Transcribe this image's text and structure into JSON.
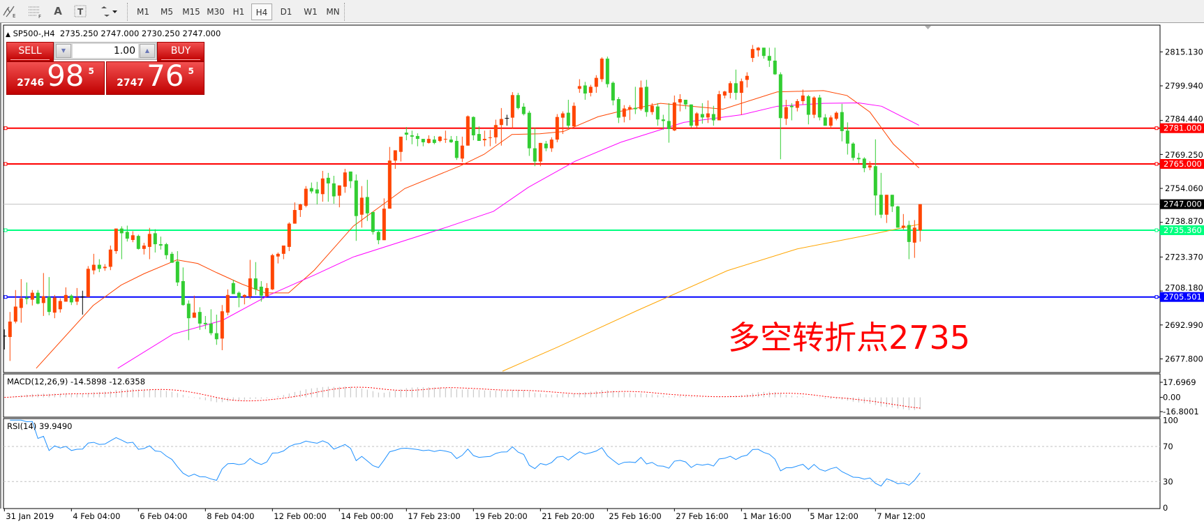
{
  "toolbar": {
    "icons": [
      "elliott-wave-icon",
      "fibonacci-icon",
      "text-icon",
      "text-label-icon",
      "arrows-icon"
    ],
    "timeframes": [
      "M1",
      "M5",
      "M15",
      "M30",
      "H1",
      "H4",
      "D1",
      "W1",
      "MN"
    ],
    "selected_timeframe": "H4"
  },
  "chart_header": {
    "symbol": "SP500-,H4",
    "ohlc": "2735.250 2747.000 2730.250 2747.000"
  },
  "trade_panel": {
    "sell_label": "SELL",
    "buy_label": "BUY",
    "lot": "1.00",
    "sell_price": {
      "prefix": "2746",
      "big": "98",
      "sup": "5"
    },
    "buy_price": {
      "prefix": "2747",
      "big": "76",
      "sup": "5"
    }
  },
  "annotation": "多空转折点2735",
  "macd_label": "MACD(12,26,9) -14.5898 -12.6358",
  "rsi_label": "RSI(14) 39.9490",
  "colors": {
    "bull": "#ff4500",
    "bear": "#32cd32",
    "doji": "#000000"
  },
  "chart_data": {
    "type": "candlestick",
    "candles": [
      [
        2688,
        2691,
        2682,
        2688
      ],
      [
        2687.6,
        2698.8,
        2676.9,
        2694.5
      ],
      [
        2694.5,
        2708.6,
        2693.7,
        2701.2
      ],
      [
        2700.6,
        2713.5,
        2694,
        2704.9
      ],
      [
        2705.2,
        2712,
        2702.2,
        2704.6
      ],
      [
        2704.3,
        2708.6,
        2701.7,
        2707.4
      ],
      [
        2707.4,
        2708.6,
        2702.2,
        2702.5
      ],
      [
        2702.8,
        2716.2,
        2697,
        2705.8
      ],
      [
        2705.5,
        2714.4,
        2697.3,
        2698.8
      ],
      [
        2698.5,
        2706.4,
        2696,
        2705.2
      ],
      [
        2700,
        2704.9,
        2698.5,
        2703.7
      ],
      [
        2703.4,
        2709.8,
        2703.4,
        2706.4
      ],
      [
        2706.1,
        2706.7,
        2701.9,
        2703.1
      ],
      [
        2703.4,
        2709.5,
        2701.9,
        2705.2
      ],
      [
        2705.5,
        2708.3,
        2697.6,
        2705.5
      ],
      [
        2705.5,
        2719.3,
        2705.5,
        2718.1
      ],
      [
        2717.4,
        2724.8,
        2715.6,
        2719.9
      ],
      [
        2719.9,
        2722.4,
        2716.6,
        2718.1
      ],
      [
        2718.4,
        2720.2,
        2717.2,
        2719
      ],
      [
        2719,
        2728.5,
        2717.5,
        2726.7
      ],
      [
        2726,
        2736.1,
        2724.8,
        2736.1
      ],
      [
        2736.1,
        2737.1,
        2722.4,
        2734
      ],
      [
        2734.6,
        2737.4,
        2730.3,
        2731.6
      ],
      [
        2731,
        2734.9,
        2730,
        2733.1
      ],
      [
        2732.8,
        2733.4,
        2726.7,
        2727
      ],
      [
        2727,
        2729.7,
        2724.5,
        2728.5
      ],
      [
        2727.9,
        2736.4,
        2722.4,
        2733.7
      ],
      [
        2734,
        2735.8,
        2725.4,
        2729.1
      ],
      [
        2729.1,
        2732.5,
        2726.7,
        2728.5
      ],
      [
        2729.1,
        2729.7,
        2722.4,
        2724.2
      ],
      [
        2724.8,
        2725.7,
        2720.8,
        2720.8
      ],
      [
        2721.4,
        2726,
        2710.4,
        2712
      ],
      [
        2712.6,
        2718.7,
        2701.6,
        2701.9
      ],
      [
        2702.5,
        2704,
        2686.2,
        2696
      ],
      [
        2696.2,
        2706.1,
        2696.2,
        2698.5
      ],
      [
        2698.8,
        2700.9,
        2690.8,
        2693.6
      ],
      [
        2693.9,
        2697,
        2691.1,
        2693.3
      ],
      [
        2693.6,
        2700,
        2688.4,
        2689.3
      ],
      [
        2689.3,
        2697.6,
        2684.1,
        2686.6
      ],
      [
        2686.9,
        2701.9,
        2681.7,
        2699.1
      ],
      [
        2698.5,
        2708.9,
        2697.3,
        2706.4
      ],
      [
        2711.7,
        2713.2,
        2706.8,
        2706.8
      ],
      [
        2707.4,
        2708,
        2700.9,
        2705.2
      ],
      [
        2705.5,
        2706.7,
        2702.2,
        2706.4
      ],
      [
        2705.8,
        2722.1,
        2704.6,
        2713.8
      ],
      [
        2713.8,
        2721.1,
        2706.4,
        2708.9
      ],
      [
        2710.1,
        2712.6,
        2703.4,
        2706.1
      ],
      [
        2705.8,
        2711.7,
        2705.8,
        2709.5
      ],
      [
        2708.9,
        2724.8,
        2708.6,
        2724.2
      ],
      [
        2723.6,
        2725.4,
        2720.5,
        2724.8
      ],
      [
        2724.8,
        2728.5,
        2722.4,
        2728.5
      ],
      [
        2727.9,
        2738.9,
        2726,
        2738.3
      ],
      [
        2738.3,
        2747.8,
        2738.3,
        2744.4
      ],
      [
        2744.4,
        2747.2,
        2741.3,
        2746.9
      ],
      [
        2746.3,
        2755.1,
        2745.6,
        2753.9
      ],
      [
        2754.2,
        2756.7,
        2751.8,
        2752.7
      ],
      [
        2753.6,
        2757,
        2746.9,
        2751.8
      ],
      [
        2751.5,
        2761.9,
        2748.1,
        2758.5
      ],
      [
        2758.8,
        2761,
        2748.1,
        2756.3
      ],
      [
        2756.3,
        2759.7,
        2747.2,
        2750.5
      ],
      [
        2750.8,
        2755.4,
        2745.6,
        2755.4
      ],
      [
        2754.8,
        2762.8,
        2752.1,
        2761.2
      ],
      [
        2761.6,
        2761.6,
        2754.2,
        2757.3
      ],
      [
        2757.6,
        2760.3,
        2730.6,
        2741.7
      ],
      [
        2742.3,
        2755.1,
        2736.5,
        2749.9
      ],
      [
        2750.2,
        2757.9,
        2739.5,
        2742.9
      ],
      [
        2743.5,
        2743.5,
        2733.4,
        2734.6
      ],
      [
        2734.6,
        2735.2,
        2729.1,
        2730.9
      ],
      [
        2730.9,
        2749.6,
        2730.9,
        2745
      ],
      [
        2745,
        2772.6,
        2745,
        2766.5
      ],
      [
        2766.5,
        2771.1,
        2762.8,
        2771.1
      ],
      [
        2770.4,
        2777.2,
        2766.1,
        2777.2
      ],
      [
        2779,
        2781.5,
        2775.6,
        2778.1
      ],
      [
        2777.8,
        2779.9,
        2773.8,
        2777.2
      ],
      [
        2777.5,
        2778.7,
        2772.9,
        2776.2
      ],
      [
        2776.2,
        2776.2,
        2772.9,
        2774.7
      ],
      [
        2774.4,
        2777.8,
        2774.1,
        2776.2
      ],
      [
        2775.9,
        2777.5,
        2773.8,
        2774.4
      ],
      [
        2775.3,
        2777.5,
        2774.7,
        2777.2
      ],
      [
        2776,
        2779.9,
        2774.4,
        2776.2
      ],
      [
        2775.9,
        2777.5,
        2774.4,
        2774.7
      ],
      [
        2775.3,
        2777.5,
        2766.8,
        2767.7
      ],
      [
        2767.4,
        2777.2,
        2765.8,
        2773.2
      ],
      [
        2773.2,
        2786.7,
        2773.2,
        2786.3
      ],
      [
        2786,
        2786.3,
        2775.6,
        2777.8
      ],
      [
        2778.4,
        2781.8,
        2775.3,
        2775.3
      ],
      [
        2775.6,
        2779.9,
        2772.9,
        2776.2
      ],
      [
        2776.6,
        2780.2,
        2772.9,
        2776.9
      ],
      [
        2776.9,
        2784.8,
        2774.1,
        2782.4
      ],
      [
        2782.4,
        2790,
        2773.2,
        2785.1
      ],
      [
        2785.4,
        2787,
        2782.1,
        2785.4
      ],
      [
        2785.7,
        2797.1,
        2780.8,
        2795.8
      ],
      [
        2795.8,
        2796.8,
        2789.4,
        2790
      ],
      [
        2790.6,
        2792.2,
        2786.7,
        2787.3
      ],
      [
        2787.9,
        2788.8,
        2768.6,
        2772
      ],
      [
        2772,
        2781.1,
        2764,
        2766.1
      ],
      [
        2766.1,
        2774.4,
        2764,
        2774.4
      ],
      [
        2774.1,
        2775.3,
        2770.7,
        2772
      ],
      [
        2772,
        2776.9,
        2770.4,
        2775.9
      ],
      [
        2775.9,
        2787.3,
        2774.7,
        2786
      ],
      [
        2785.7,
        2788.5,
        2778.4,
        2787.6
      ],
      [
        2787.9,
        2793.7,
        2780.8,
        2782.1
      ],
      [
        2781.8,
        2792.5,
        2781.8,
        2791
      ],
      [
        2798.6,
        2802.9,
        2796.8,
        2799.8
      ],
      [
        2800.1,
        2801.7,
        2793.7,
        2796.5
      ],
      [
        2796.8,
        2800.4,
        2795.2,
        2799.5
      ],
      [
        2799.5,
        2804.7,
        2796.8,
        2803.5
      ],
      [
        2802.9,
        2812.7,
        2801.7,
        2812.1
      ],
      [
        2812.1,
        2813,
        2799.2,
        2800.7
      ],
      [
        2801.3,
        2801.9,
        2791.2,
        2793.4
      ],
      [
        2794,
        2794.9,
        2783.3,
        2785.7
      ],
      [
        2786.1,
        2791.3,
        2783.6,
        2789.8
      ],
      [
        2789.5,
        2791.3,
        2784.6,
        2790.4
      ],
      [
        2790.1,
        2799.5,
        2787.3,
        2789.5
      ],
      [
        2789.5,
        2802.3,
        2788.8,
        2799.2
      ],
      [
        2799.5,
        2802.6,
        2786.1,
        2788.2
      ],
      [
        2788.2,
        2792.2,
        2787,
        2791
      ],
      [
        2790.7,
        2792.2,
        2782.1,
        2784.9
      ],
      [
        2784.9,
        2787,
        2780.3,
        2784.2
      ],
      [
        2784.2,
        2792.2,
        2774.5,
        2780.6
      ],
      [
        2780,
        2795.6,
        2779.7,
        2792.5
      ],
      [
        2792.5,
        2796.2,
        2788.5,
        2794
      ],
      [
        2793.7,
        2793.7,
        2789.5,
        2791.6
      ],
      [
        2791.6,
        2791.6,
        2781.2,
        2782.1
      ],
      [
        2782.1,
        2788.2,
        2781.2,
        2787.6
      ],
      [
        2787.3,
        2792.2,
        2783,
        2785.8
      ],
      [
        2785.8,
        2793.4,
        2783.3,
        2787.6
      ],
      [
        2787.3,
        2791,
        2782.1,
        2784.5
      ],
      [
        2784.5,
        2797.7,
        2784.5,
        2796.2
      ],
      [
        2795.6,
        2797.7,
        2794.3,
        2797.4
      ],
      [
        2796.8,
        2802,
        2794.3,
        2801.1
      ],
      [
        2801.1,
        2807.2,
        2793.7,
        2796.8
      ],
      [
        2796.8,
        2803.2,
        2787,
        2802
      ],
      [
        2802.6,
        2806,
        2799.2,
        2804.4
      ],
      [
        2812.4,
        2818.2,
        2810.6,
        2816.4
      ],
      [
        2815.8,
        2817.3,
        2813,
        2817
      ],
      [
        2817,
        2817,
        2812.1,
        2813.3
      ],
      [
        2813.3,
        2817,
        2808.4,
        2811.2
      ],
      [
        2811.2,
        2817,
        2804.8,
        2805.1
      ],
      [
        2805.1,
        2806,
        2767.1,
        2785.5
      ],
      [
        2785.2,
        2793.7,
        2782.4,
        2790.4
      ],
      [
        2791,
        2792.2,
        2784.5,
        2790.4
      ],
      [
        2790.1,
        2794,
        2788.5,
        2793.1
      ],
      [
        2793.1,
        2798.3,
        2791.6,
        2795.6
      ],
      [
        2795.3,
        2795.9,
        2782.7,
        2787
      ],
      [
        2787,
        2795.3,
        2785.5,
        2794.7
      ],
      [
        2794.7,
        2795.9,
        2784.5,
        2785.8
      ],
      [
        2785.8,
        2787.3,
        2782.1,
        2782.1
      ],
      [
        2782.1,
        2786.7,
        2780.9,
        2785.8
      ],
      [
        2785.2,
        2788.5,
        2784.5,
        2787.9
      ],
      [
        2788.2,
        2791.9,
        2775.1,
        2779.7
      ],
      [
        2779.9,
        2783.6,
        2769.2,
        2774.1
      ],
      [
        2774.1,
        2774.7,
        2766.5,
        2767.7
      ],
      [
        2767.7,
        2769.9,
        2765.3,
        2767.1
      ],
      [
        2767.4,
        2768,
        2761.3,
        2763.1
      ],
      [
        2763.4,
        2766.2,
        2762.2,
        2764.4
      ],
      [
        2764,
        2776,
        2742,
        2750.9
      ],
      [
        2751.2,
        2761,
        2740.8,
        2742.3
      ],
      [
        2742.3,
        2751.2,
        2738.6,
        2751.2
      ],
      [
        2751.2,
        2751.2,
        2743.5,
        2746
      ],
      [
        2746,
        2746.3,
        2736.5,
        2736.5
      ],
      [
        2736.5,
        2742.6,
        2735.6,
        2737.4
      ],
      [
        2737.7,
        2739.6,
        2722.4,
        2730.1
      ],
      [
        2729.8,
        2739.9,
        2723,
        2736.5
      ],
      [
        2735.25,
        2747,
        2730.25,
        2747
      ]
    ],
    "moving_averages": [
      {
        "color": "#ff4500",
        "points": [
          [
            6.7,
            2673.6
          ],
          [
            16.9,
            2701.7
          ],
          [
            21.9,
            2710.8
          ],
          [
            26,
            2715.9
          ],
          [
            31.9,
            2722.1
          ],
          [
            35.6,
            2720.5
          ],
          [
            39,
            2716.4
          ],
          [
            43.5,
            2711.3
          ],
          [
            47.7,
            2707.3
          ],
          [
            51.9,
            2707.3
          ],
          [
            56.5,
            2717.5
          ],
          [
            63.5,
            2737.2
          ],
          [
            72.7,
            2754
          ],
          [
            82.7,
            2764.2
          ],
          [
            86.9,
            2769.3
          ],
          [
            91.9,
            2778.2
          ],
          [
            96.9,
            2778.5
          ],
          [
            101.1,
            2779.5
          ],
          [
            107.3,
            2786.1
          ],
          [
            111,
            2788.4
          ],
          [
            118.5,
            2792.1
          ],
          [
            129.7,
            2789.5
          ],
          [
            139.4,
            2797.2
          ],
          [
            147.7,
            2797.8
          ],
          [
            151.9,
            2795.6
          ],
          [
            156,
            2788.2
          ],
          [
            160.2,
            2773.9
          ],
          [
            164.8,
            2763.2
          ]
        ]
      },
      {
        "color": "#ff00ff",
        "points": [
          [
            21.3,
            2673.6
          ],
          [
            31.2,
            2688.9
          ],
          [
            40,
            2695
          ],
          [
            48.3,
            2706.2
          ],
          [
            56.6,
            2715.4
          ],
          [
            63.5,
            2723.4
          ],
          [
            80.2,
            2736.7
          ],
          [
            88.6,
            2743.8
          ],
          [
            94.8,
            2754.5
          ],
          [
            103.2,
            2766.2
          ],
          [
            111.5,
            2774.8
          ],
          [
            122.7,
            2783.6
          ],
          [
            133,
            2787
          ],
          [
            139.4,
            2790.8
          ],
          [
            147.7,
            2792.1
          ],
          [
            154,
            2792.3
          ],
          [
            158.1,
            2790.8
          ],
          [
            164.8,
            2782.3
          ]
        ]
      },
      {
        "color": "#ffa500",
        "points": [
          [
            90.2,
            2672.3
          ],
          [
            100,
            2683
          ],
          [
            114.3,
            2699.4
          ],
          [
            130.5,
            2717.3
          ],
          [
            143,
            2727
          ],
          [
            155.5,
            2733.1
          ],
          [
            164.8,
            2738
          ]
        ]
      }
    ],
    "horizontal_lines": [
      {
        "price": 2781.0,
        "label": "2781.000",
        "color": "#ff0000"
      },
      {
        "price": 2765.0,
        "label": "2765.000",
        "color": "#ff0000"
      },
      {
        "price": 2735.36,
        "label": "2735.360",
        "color": "#00ff7f"
      },
      {
        "price": 2705.501,
        "label": "2705.501",
        "color": "#0000ff"
      }
    ],
    "current_price": {
      "price": 2747.0,
      "label": "2747.000"
    },
    "y_ticks": [
      "2815.130",
      "2799.940",
      "2784.440",
      "2769.250",
      "2754.060",
      "2738.870",
      "2723.370",
      "2708.180",
      "2692.990",
      "2677.800"
    ],
    "x_ticks": [
      {
        "bar": 1,
        "label": "31 Jan 2019"
      },
      {
        "bar": 13,
        "label": "4 Feb 04:00"
      },
      {
        "bar": 25,
        "label": "6 Feb 04:00"
      },
      {
        "bar": 37,
        "label": "8 Feb 04:00"
      },
      {
        "bar": 49,
        "label": "12 Feb 00:00"
      },
      {
        "bar": 61,
        "label": "14 Feb 00:00"
      },
      {
        "bar": 73,
        "label": "17 Feb 23:00"
      },
      {
        "bar": 85,
        "label": "19 Feb 20:00"
      },
      {
        "bar": 97,
        "label": "21 Feb 20:00"
      },
      {
        "bar": 109,
        "label": "25 Feb 16:00"
      },
      {
        "bar": 121,
        "label": "27 Feb 16:00"
      },
      {
        "bar": 133,
        "label": "1 Mar 16:00"
      },
      {
        "bar": 145,
        "label": "5 Mar 12:00"
      },
      {
        "bar": 157,
        "label": "7 Mar 12:00"
      }
    ],
    "macd": {
      "params": [
        12,
        26,
        9
      ],
      "ticks": [
        "17.6969",
        "0.00",
        "-16.8001"
      ],
      "tick_values": [
        17.6969,
        0,
        -16.8001
      ]
    },
    "rsi": {
      "period": 14,
      "ticks": [
        "100",
        "70",
        "30",
        "0"
      ],
      "tick_values": [
        100,
        70,
        30,
        0
      ],
      "levels": [
        70,
        30
      ]
    }
  }
}
